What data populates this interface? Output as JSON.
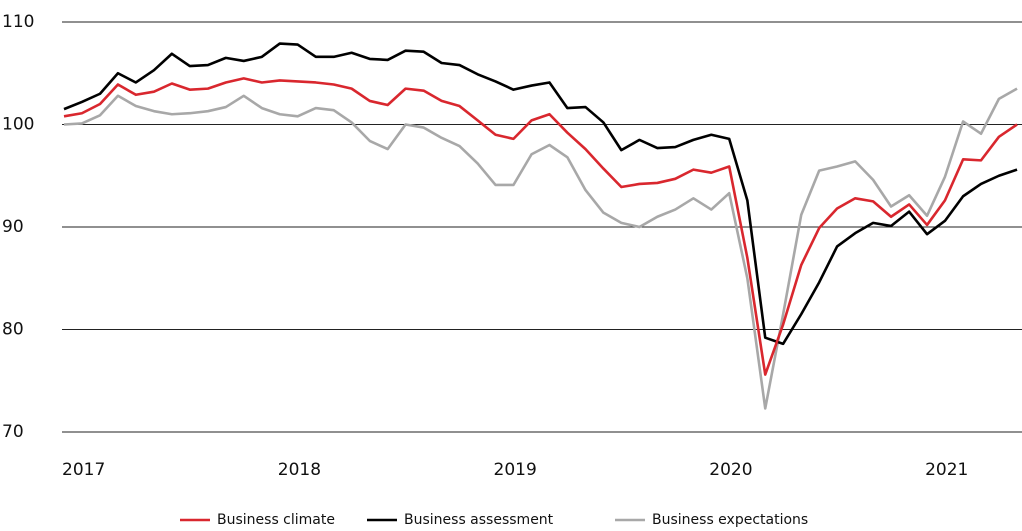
{
  "chart_data": {
    "type": "line",
    "x": [
      2017,
      2017.083,
      2017.167,
      2017.25,
      2017.333,
      2017.417,
      2017.5,
      2017.583,
      2017.667,
      2017.75,
      2017.833,
      2017.917,
      2018,
      2018.083,
      2018.167,
      2018.25,
      2018.333,
      2018.417,
      2018.5,
      2018.583,
      2018.667,
      2018.75,
      2018.833,
      2018.917,
      2019,
      2019.083,
      2019.167,
      2019.25,
      2019.333,
      2019.417,
      2019.5,
      2019.583,
      2019.667,
      2019.75,
      2019.833,
      2019.917,
      2020,
      2020.083,
      2020.167,
      2020.25,
      2020.333,
      2020.417,
      2020.5,
      2020.583,
      2020.667,
      2020.75,
      2020.833,
      2020.917,
      2021,
      2021.083,
      2021.167,
      2021.25,
      2021.333,
      2021.417
    ],
    "series": [
      {
        "name": "Business climate",
        "color": "#d9272e",
        "values": [
          100.8,
          101.1,
          102.0,
          103.9,
          102.9,
          103.2,
          104.0,
          103.4,
          103.5,
          104.1,
          104.5,
          104.1,
          104.3,
          104.2,
          104.1,
          103.9,
          103.5,
          102.3,
          101.9,
          103.5,
          103.3,
          102.3,
          101.8,
          100.4,
          99.0,
          98.6,
          100.4,
          101.0,
          99.2,
          97.6,
          95.7,
          93.9,
          94.2,
          94.3,
          94.7,
          95.6,
          95.3,
          95.9,
          87.0,
          75.6,
          80.5,
          86.3,
          89.9,
          91.8,
          92.8,
          92.5,
          91.0,
          92.2,
          90.2,
          92.6,
          96.6,
          96.5,
          98.8,
          100.0
        ]
      },
      {
        "name": "Business assessment",
        "color": "#000000",
        "values": [
          101.5,
          102.2,
          103.0,
          105.0,
          104.1,
          105.3,
          106.9,
          105.7,
          105.8,
          106.5,
          106.2,
          106.6,
          107.9,
          107.8,
          106.6,
          106.6,
          107.0,
          106.4,
          106.3,
          107.2,
          107.1,
          106.0,
          105.8,
          104.9,
          104.2,
          103.4,
          103.8,
          104.1,
          101.6,
          101.7,
          100.2,
          97.5,
          98.5,
          97.7,
          97.8,
          98.5,
          99.0,
          98.6,
          92.6,
          79.2,
          78.6,
          81.5,
          84.6,
          88.1,
          89.4,
          90.4,
          90.1,
          91.5,
          89.3,
          90.6,
          93.0,
          94.2,
          95.0,
          95.6
        ]
      },
      {
        "name": "Business expectations",
        "color": "#a8a8a8",
        "values": [
          100.0,
          100.1,
          100.9,
          102.8,
          101.8,
          101.3,
          101.0,
          101.1,
          101.3,
          101.7,
          102.8,
          101.6,
          101.0,
          100.8,
          101.6,
          101.4,
          100.2,
          98.4,
          97.6,
          100.0,
          99.7,
          98.7,
          97.9,
          96.2,
          94.1,
          94.1,
          97.1,
          98.0,
          96.8,
          93.6,
          91.4,
          90.4,
          90.0,
          91.0,
          91.7,
          92.8,
          91.7,
          93.3,
          85.0,
          72.3,
          81.5,
          91.2,
          95.5,
          95.9,
          96.4,
          94.6,
          92.0,
          93.1,
          91.1,
          94.9,
          100.3,
          99.1,
          102.5,
          103.5
        ]
      }
    ],
    "xlim": [
      2017,
      2021.44
    ],
    "xticks": [
      2017,
      2018,
      2019,
      2020,
      2021
    ],
    "ylim": [
      70,
      110
    ],
    "yticks": [
      70,
      80,
      90,
      100,
      110
    ],
    "grid": true,
    "legend": "bottom"
  }
}
